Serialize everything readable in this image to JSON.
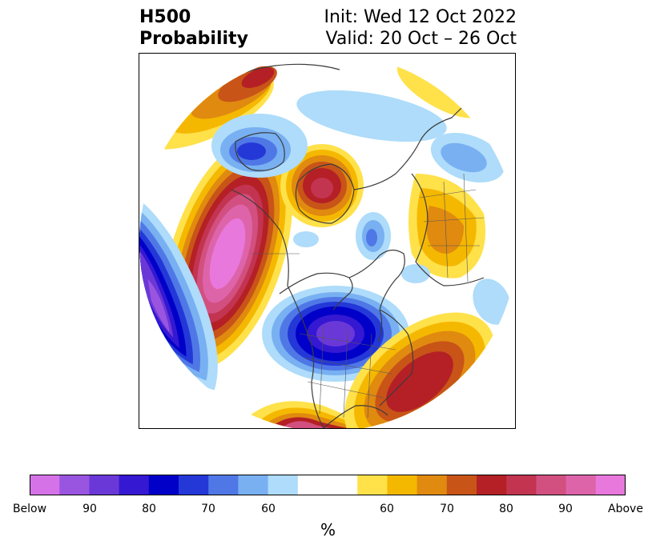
{
  "title": {
    "line1": "H500",
    "line2": "Probability",
    "init": "Init: Wed 12 Oct 2022",
    "valid": "Valid: 20 Oct – 26 Oct"
  },
  "colorbar": {
    "colors": [
      "#d672e8",
      "#9a55e0",
      "#6b38d8",
      "#3518d2",
      "#0000c8",
      "#2438d8",
      "#4f78e6",
      "#78b0f2",
      "#aedcfa",
      "#ffffff",
      "#ffe14a",
      "#f5b800",
      "#e08a10",
      "#c85418",
      "#b42025",
      "#c23450",
      "#d25080",
      "#de64aa",
      "#e878dc"
    ],
    "tick_labels": [
      "Below",
      "90",
      "80",
      "70",
      "60",
      "60",
      "70",
      "80",
      "90",
      "Above"
    ],
    "unit": "%"
  },
  "map": {
    "projection": "north-polar-stereographic",
    "regions": [
      {
        "name": "alaska-gulf-above",
        "category": "above",
        "peak_percent": 99
      },
      {
        "name": "east-pacific-below",
        "category": "below",
        "peak_percent": 99
      },
      {
        "name": "eastern-canada-below",
        "category": "below",
        "peak_percent": 90
      },
      {
        "name": "southern-us-above",
        "category": "above",
        "peak_percent": 90
      },
      {
        "name": "greenland-above",
        "category": "above",
        "peak_percent": 80
      },
      {
        "name": "europe-above",
        "category": "above",
        "peak_percent": 70
      },
      {
        "name": "siberia-above",
        "category": "above",
        "peak_percent": 70
      },
      {
        "name": "west-siberia-below",
        "category": "below",
        "peak_percent": 80
      },
      {
        "name": "arctic-below",
        "category": "below",
        "peak_percent": 60
      },
      {
        "name": "north-atlantic-above",
        "category": "above",
        "peak_percent": 80
      }
    ]
  }
}
